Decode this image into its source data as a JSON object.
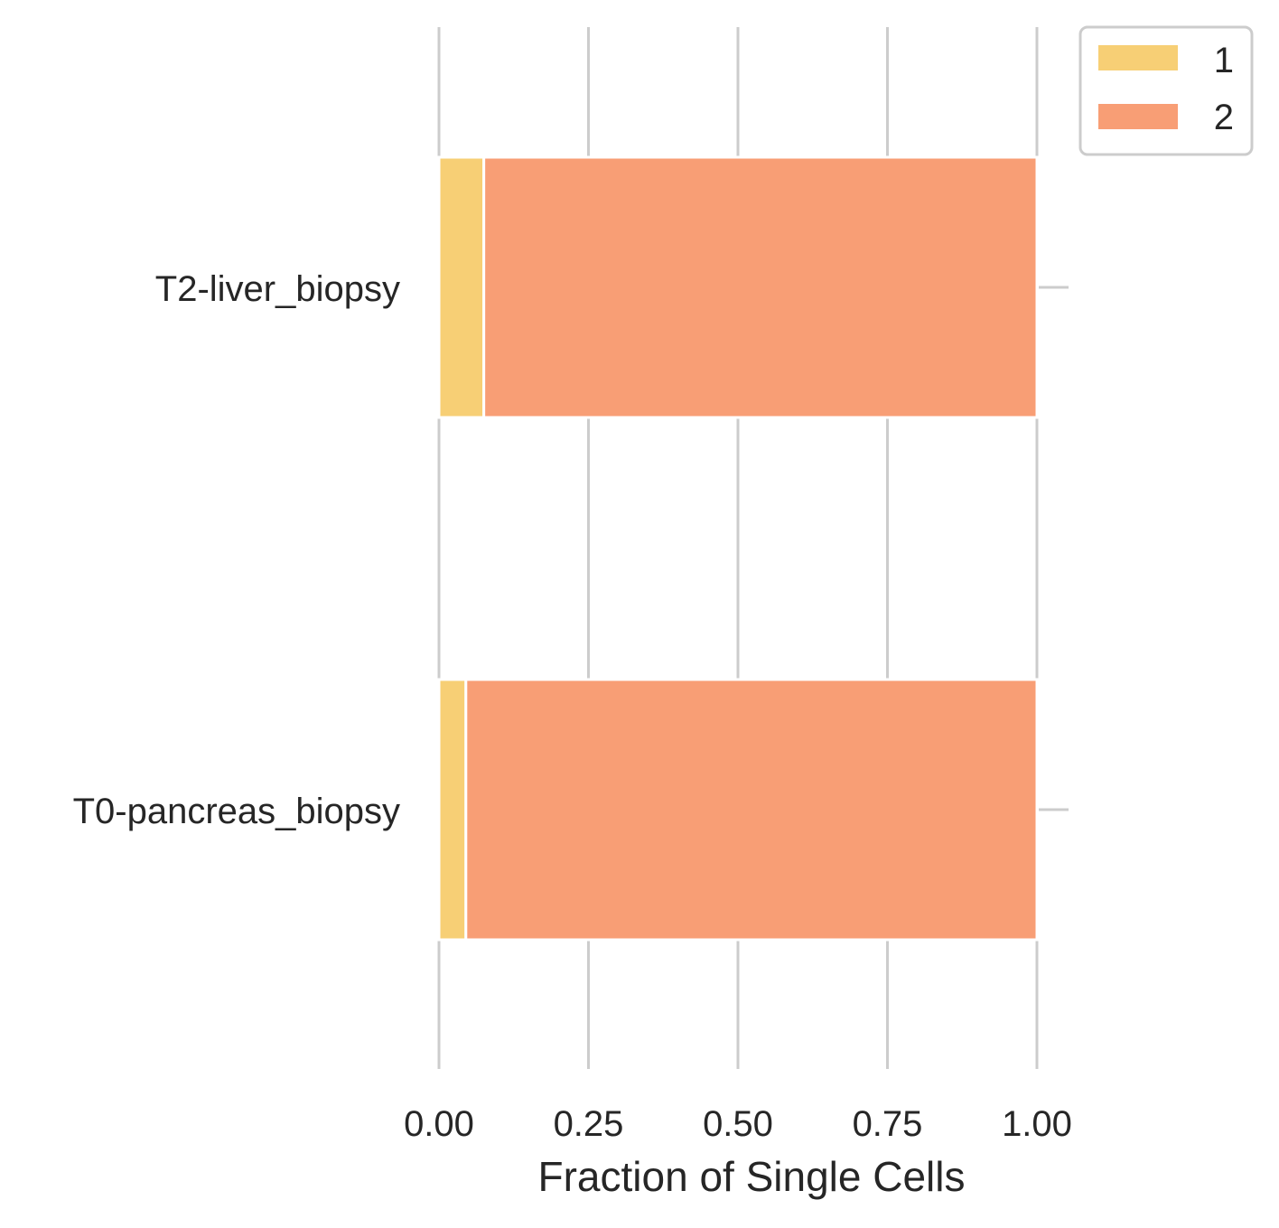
{
  "chart_data": {
    "type": "bar",
    "orientation": "horizontal",
    "stacked": true,
    "categories": [
      "T2-liver_biopsy",
      "T0-pancreas_biopsy"
    ],
    "series": [
      {
        "name": "1",
        "values": [
          0.075,
          0.045
        ],
        "color": "#f7cf75"
      },
      {
        "name": "2",
        "values": [
          0.925,
          0.955
        ],
        "color": "#f89e75"
      }
    ],
    "title": "",
    "xlabel": "Fraction of Single Cells",
    "ylabel": "",
    "xlim": [
      0,
      1.0
    ],
    "xticks": [
      "0.00",
      "0.25",
      "0.50",
      "0.75",
      "1.00"
    ],
    "xtick_values": [
      0,
      0.25,
      0.5,
      0.75,
      1.0
    ],
    "grid": "vertical",
    "legend": {
      "placement": "top-right-outside",
      "entries": [
        "1",
        "2"
      ]
    }
  }
}
